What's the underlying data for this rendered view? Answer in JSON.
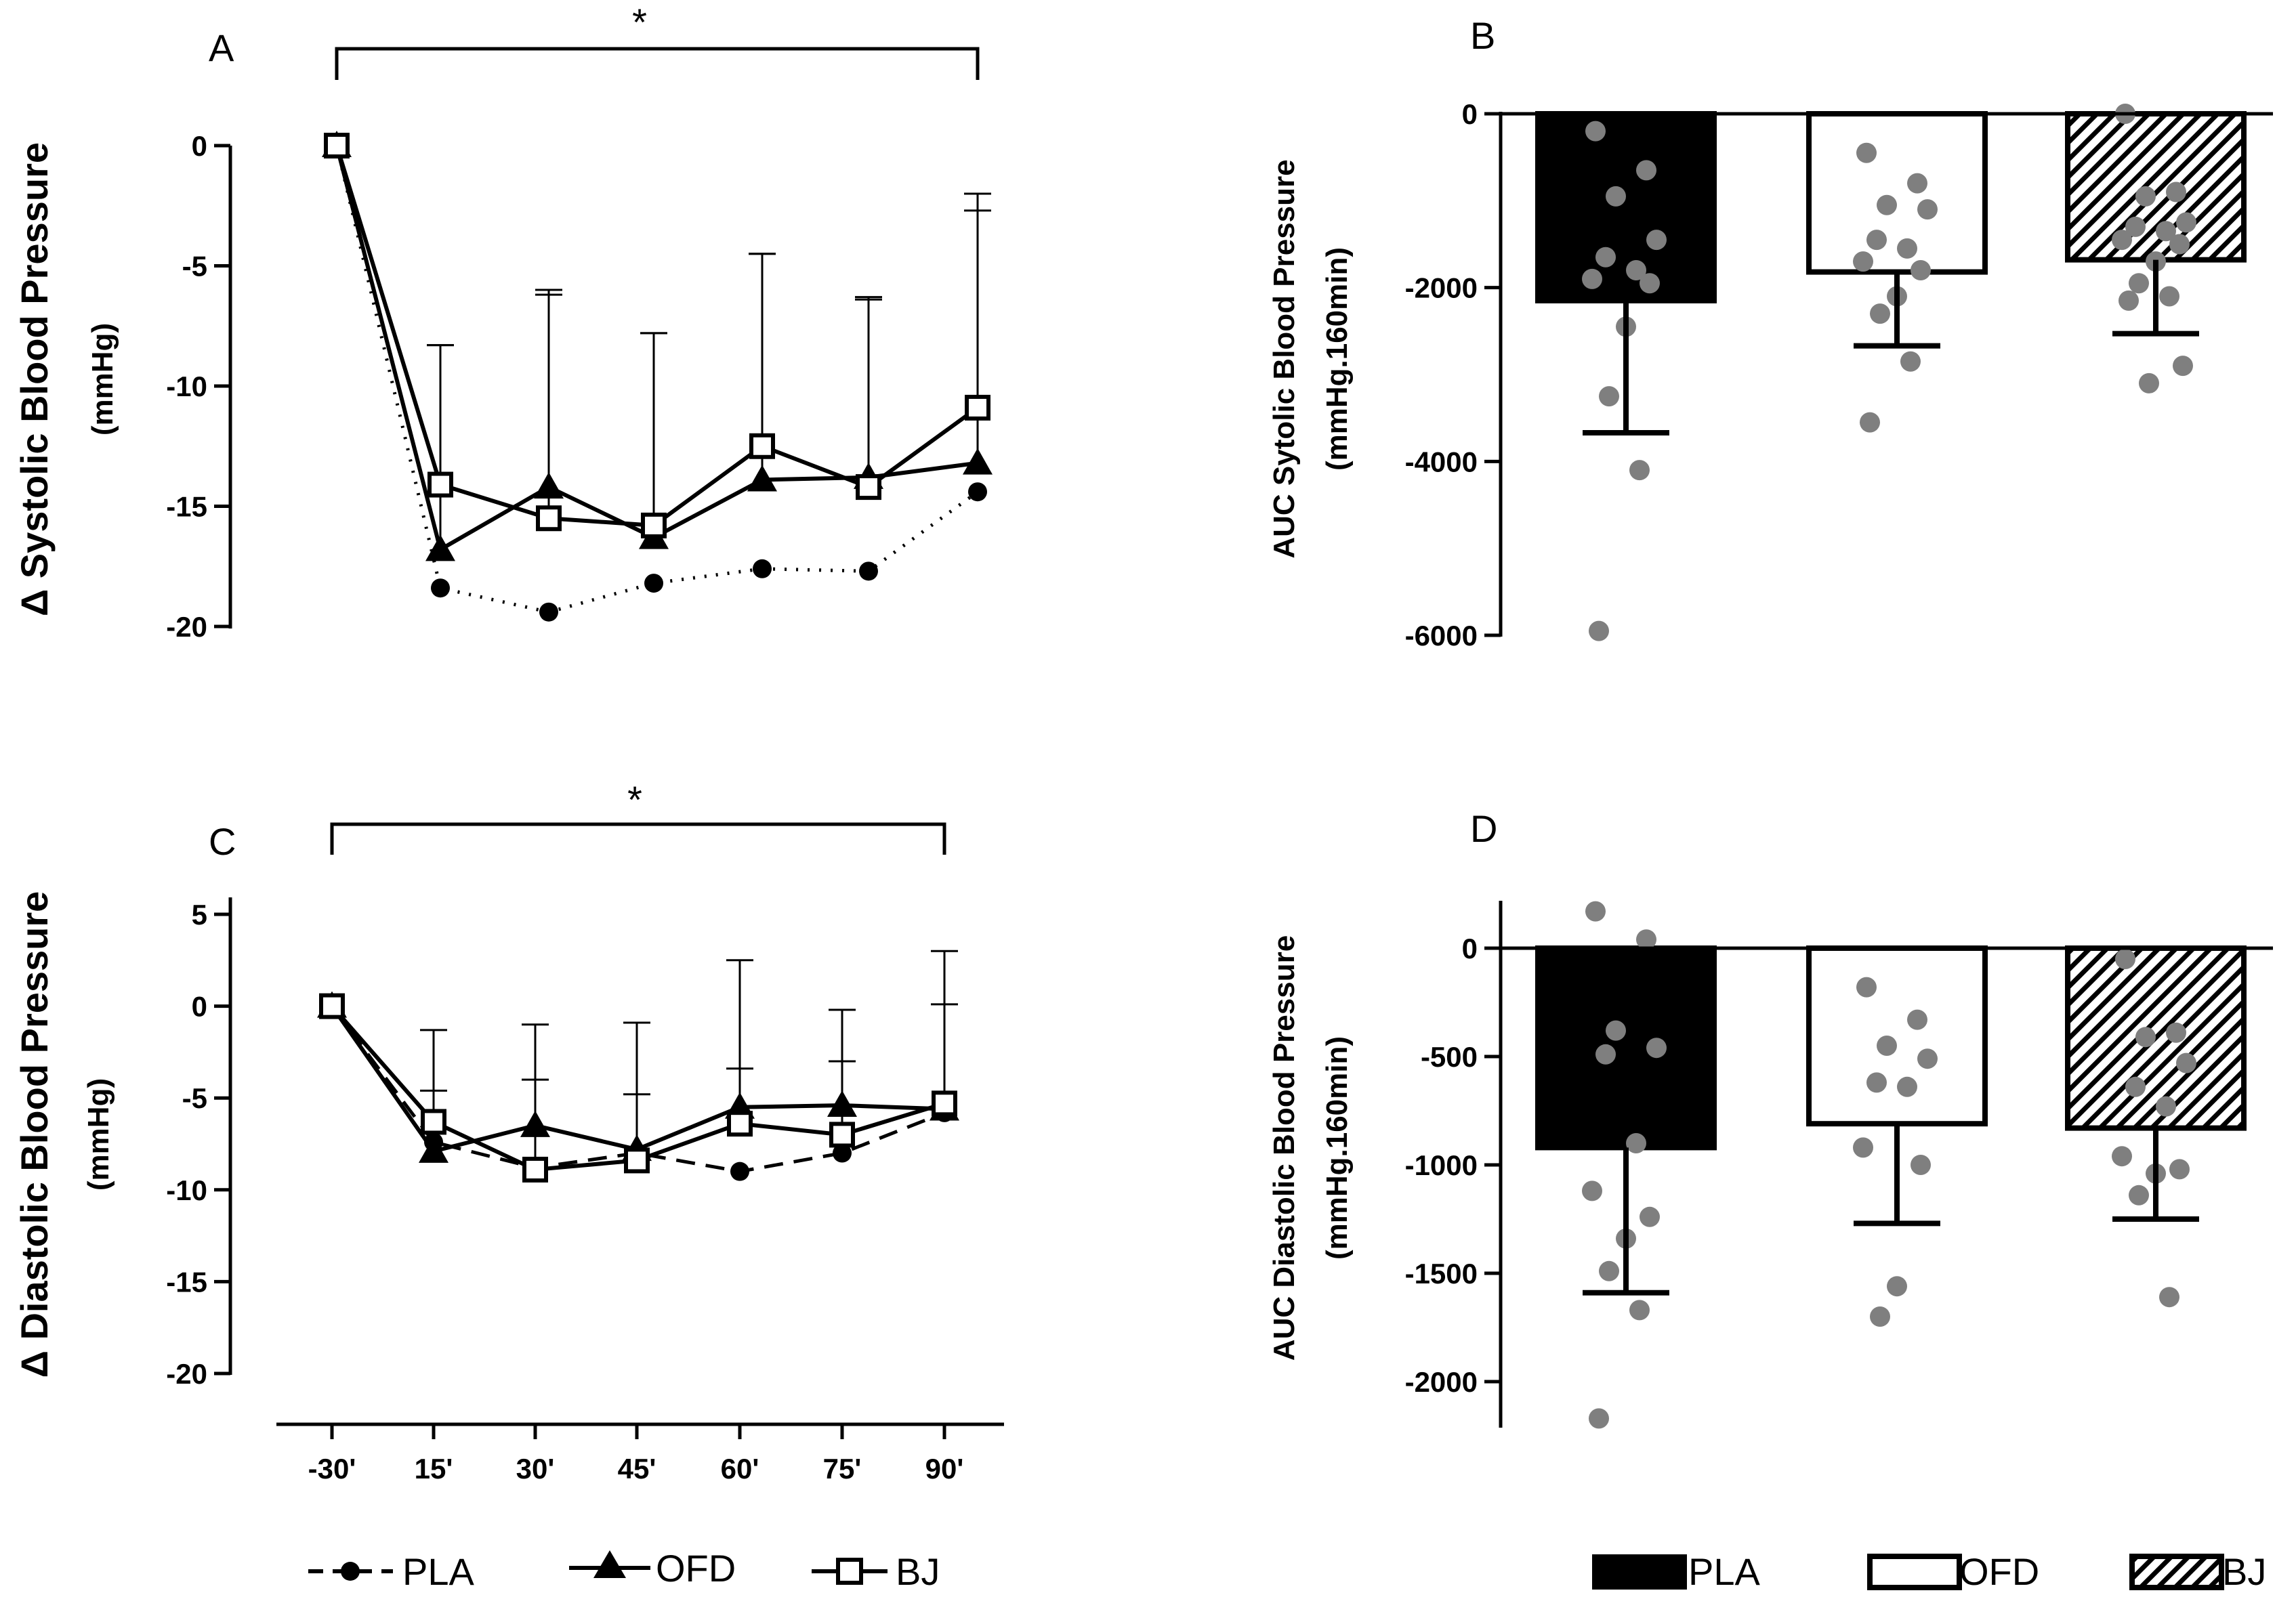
{
  "chart_data": [
    {
      "panel": "A",
      "type": "line",
      "ylabel": "Δ Systolic Blood Pressure",
      "ylabel_unit": "(mmHg)",
      "categories": [
        "-30'",
        "15'",
        "30'",
        "45'",
        "60'",
        "75'",
        "90'"
      ],
      "ylim": [
        -20,
        0
      ],
      "yticks": [
        0,
        -5,
        -10,
        -15,
        -20
      ],
      "significance": "*",
      "series": [
        {
          "name": "PLA",
          "values": [
            0,
            -18.4,
            -19.4,
            -18.2,
            -17.6,
            -17.7,
            -14.4
          ],
          "err": [
            0,
            0,
            0,
            0,
            0,
            0,
            0
          ]
        },
        {
          "name": "OFD",
          "values": [
            0,
            -16.8,
            -14.2,
            -16.3,
            -13.9,
            -13.8,
            -13.2
          ],
          "err": [
            0,
            8.5,
            8.2,
            8.5,
            9.4,
            7.5,
            11.2
          ]
        },
        {
          "name": "BJ",
          "values": [
            0,
            -14.1,
            -15.5,
            -15.8,
            -12.5,
            -14.2,
            -10.9
          ],
          "err": [
            0,
            5.8,
            9.3,
            8.0,
            8.0,
            7.8,
            8.2
          ]
        }
      ]
    },
    {
      "panel": "B",
      "type": "bar",
      "ylabel": "AUC Sytolic Blood Pressure",
      "ylabel_unit": "(mmHg.160min)",
      "categories": [
        "PLA",
        "OFD",
        "BJ"
      ],
      "values": [
        -2150,
        -1820,
        -1680
      ],
      "err": [
        1520,
        850,
        850
      ],
      "ylim": [
        -6000,
        0
      ],
      "yticks": [
        0,
        -2000,
        -4000,
        -6000
      ],
      "points": [
        [
          -200,
          -650,
          -950,
          -1450,
          -1650,
          -1800,
          -1900,
          -1950,
          -2450,
          -3250,
          -4100,
          -5950
        ],
        [
          -450,
          -800,
          -1050,
          -1100,
          -1450,
          -1550,
          -1700,
          -1800,
          -2100,
          -2300,
          -2850,
          -3550
        ],
        [
          0,
          -900,
          -950,
          -1250,
          -1300,
          -1350,
          -1450,
          -1500,
          -1700,
          -1950,
          -2100,
          -2150,
          -2900,
          -3100
        ]
      ]
    },
    {
      "panel": "C",
      "type": "line",
      "ylabel": "Δ Diastolic Blood Pressure",
      "ylabel_unit": "(mmHg)",
      "categories": [
        "-30'",
        "15'",
        "30'",
        "45'",
        "60'",
        "75'",
        "90'"
      ],
      "ylim": [
        -20,
        5
      ],
      "yticks": [
        5,
        0,
        -5,
        -10,
        -15,
        -20
      ],
      "significance": "*",
      "series": [
        {
          "name": "PLA",
          "values": [
            0,
            -7.4,
            -8.8,
            -8.0,
            -9.0,
            -8.0,
            -5.8
          ],
          "err": [
            0,
            0,
            0,
            0,
            0,
            0,
            0
          ]
        },
        {
          "name": "OFD",
          "values": [
            0,
            -7.9,
            -6.5,
            -7.8,
            -5.5,
            -5.4,
            -5.6
          ],
          "err": [
            0,
            6.6,
            5.5,
            6.9,
            8.0,
            5.2,
            8.6
          ]
        },
        {
          "name": "BJ",
          "values": [
            0,
            -6.3,
            -8.9,
            -8.4,
            -6.4,
            -7.0,
            -5.3
          ],
          "err": [
            0,
            1.7,
            4.9,
            3.6,
            3.0,
            4.0,
            5.4
          ]
        }
      ]
    },
    {
      "panel": "D",
      "type": "bar",
      "ylabel": "AUC Diastolic Blood Pressure",
      "ylabel_unit": "(mmHg.160min)",
      "categories": [
        "PLA",
        "OFD",
        "BJ"
      ],
      "values": [
        -920,
        -810,
        -830
      ],
      "err": [
        670,
        460,
        420
      ],
      "ylim": [
        -2200,
        200
      ],
      "yticks": [
        0,
        -500,
        -1000,
        -1500,
        -2000
      ],
      "points": [
        [
          170,
          40,
          -380,
          -460,
          -490,
          -900,
          -1120,
          -1240,
          -1340,
          -1490,
          -1670,
          -2170
        ],
        [
          -180,
          -330,
          -450,
          -510,
          -620,
          -640,
          -920,
          -1000,
          -1560,
          -1700
        ],
        [
          -50,
          -390,
          -410,
          -530,
          -640,
          -730,
          -960,
          -1020,
          -1040,
          -1140,
          -1610
        ]
      ]
    }
  ],
  "line_legend": [
    "PLA",
    "OFD",
    "BJ"
  ],
  "bar_legend": [
    "PLA",
    "OFD",
    "BJ"
  ]
}
